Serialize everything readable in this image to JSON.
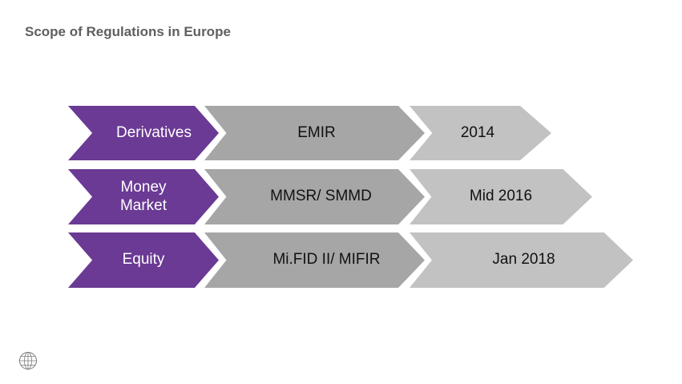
{
  "title": "Scope of Regulations in Europe",
  "colors": {
    "category": "#6a3a94",
    "regulation": "#a6a6a6",
    "date": "#c2c2c2",
    "title": "#5f5f5f"
  },
  "rows": [
    {
      "category": "Derivatives",
      "regulation": "EMIR",
      "date": "2014"
    },
    {
      "category": "Money Market",
      "regulation": "MMSR/ SMMD",
      "date": "Mid 2016"
    },
    {
      "category": "Equity",
      "regulation": "Mi.FID II/ MIFIR",
      "date": "Jan 2018"
    }
  ],
  "logo_icon": "swift-globe-icon"
}
